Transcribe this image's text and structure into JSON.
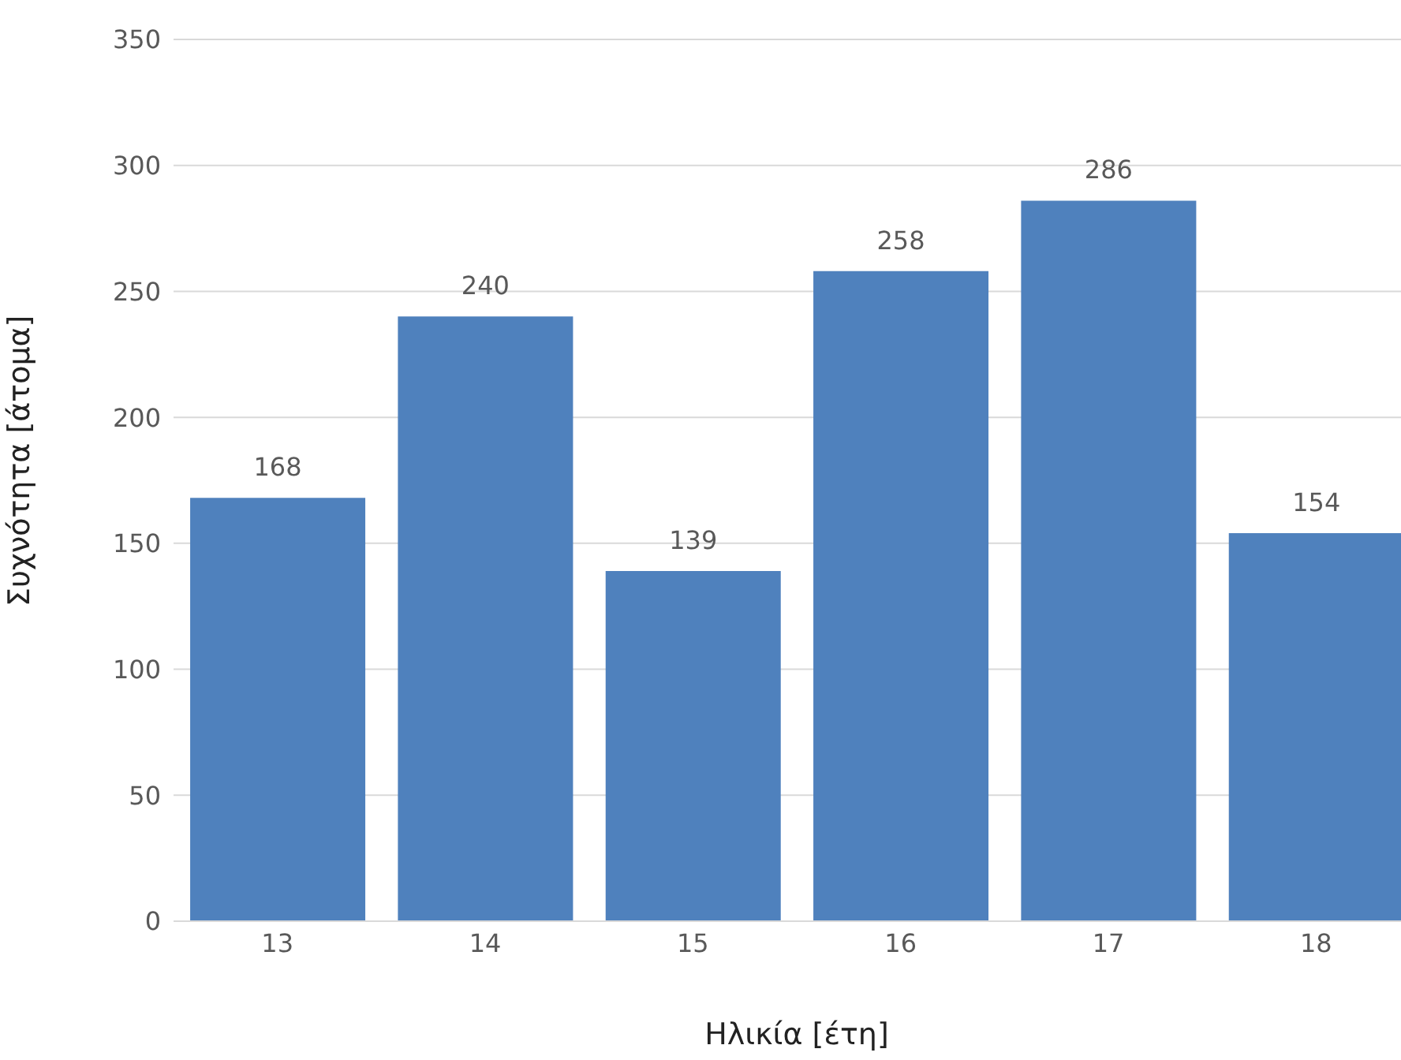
{
  "chart_data": {
    "type": "bar",
    "xlabel": "Ηλικία [έτη]",
    "ylabel": "Συχνότητα [άτομα]",
    "categories": [
      "13",
      "14",
      "15",
      "16",
      "17",
      "18"
    ],
    "values": [
      168,
      240,
      139,
      258,
      286,
      154
    ],
    "color": "#4f81bd",
    "ylim": [
      0,
      350
    ],
    "yticks": [
      0,
      50,
      100,
      150,
      200,
      250,
      300,
      350
    ],
    "grid": "y",
    "data_labels": true
  }
}
